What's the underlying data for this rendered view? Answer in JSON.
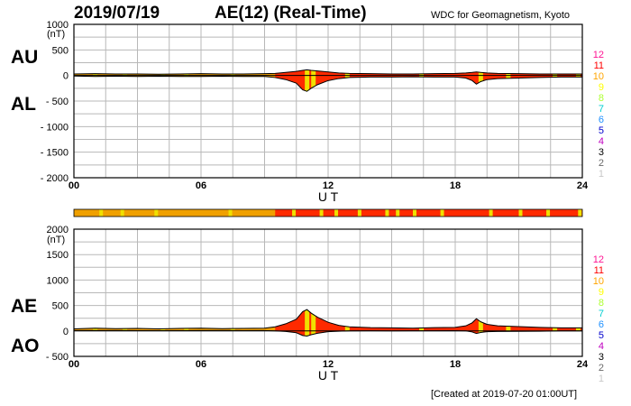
{
  "header": {
    "date": "2019/07/19",
    "title": "AE(12) (Real-Time)",
    "source": "WDC for Geomagnetism, Kyoto"
  },
  "footer": {
    "created": "[Created at 2019-07-20 01:00UT]"
  },
  "colors": {
    "fill_main": "#ff2a00",
    "fill_quiet": "#f0a000",
    "fill_pale": "#f0e000",
    "grid": "#b8b8b8",
    "station_levels": {
      "12": "#ff1493",
      "11": "#ff0000",
      "10": "#ffa500",
      "9": "#ffff00",
      "8": "#adff2f",
      "7": "#00ced1",
      "6": "#1e90ff",
      "5": "#0000cd",
      "4": "#c000c0",
      "3": "#000000",
      "2": "#696969",
      "1": "#c8c8c8"
    }
  },
  "panel_labels": {
    "top_upper": "AU",
    "top_lower": "AL",
    "bottom_upper": "AE",
    "bottom_lower": "AO"
  },
  "chart_data": [
    {
      "type": "area",
      "name": "AU/AL",
      "xlabel": "U T",
      "ylabel": "(nT)",
      "xlim": [
        0,
        24
      ],
      "ylim": [
        -2000,
        1000
      ],
      "x_ticks": [
        "00",
        "06",
        "12",
        "18",
        "24"
      ],
      "y_ticks": [
        "1000",
        "500",
        "0",
        "- 500",
        "- 1000",
        "- 1500",
        "- 2000"
      ],
      "grid": true,
      "legend": [
        "12",
        "11",
        "10",
        "9",
        "8",
        "7",
        "6",
        "5",
        "4",
        "3",
        "2",
        "1"
      ],
      "x": [
        0,
        1,
        2,
        3,
        4,
        5,
        6,
        7,
        8,
        9,
        9.5,
        10,
        10.5,
        10.8,
        11.0,
        11.2,
        11.5,
        12,
        12.5,
        13,
        14,
        15,
        16,
        17,
        18,
        18.5,
        18.8,
        19.0,
        19.2,
        19.5,
        20,
        21,
        22,
        23,
        24
      ],
      "series": [
        {
          "name": "AU",
          "values": [
            30,
            35,
            30,
            30,
            25,
            30,
            35,
            30,
            30,
            35,
            40,
            60,
            80,
            100,
            110,
            100,
            90,
            70,
            50,
            40,
            35,
            30,
            30,
            35,
            40,
            50,
            60,
            70,
            60,
            50,
            40,
            35,
            30,
            30,
            30
          ]
        },
        {
          "name": "AL",
          "values": [
            -10,
            -20,
            -15,
            -20,
            -15,
            -20,
            -20,
            -15,
            -20,
            -20,
            -40,
            -80,
            -150,
            -280,
            -310,
            -250,
            -180,
            -100,
            -60,
            -40,
            -30,
            -30,
            -25,
            -30,
            -30,
            -50,
            -100,
            -170,
            -120,
            -80,
            -60,
            -50,
            -40,
            -30,
            -30
          ]
        }
      ]
    },
    {
      "type": "area",
      "name": "AE/AO",
      "xlabel": "U T",
      "ylabel": "(nT)",
      "xlim": [
        0,
        24
      ],
      "ylim": [
        -500,
        2000
      ],
      "x_ticks": [
        "00",
        "06",
        "12",
        "18",
        "24"
      ],
      "y_ticks": [
        "2000",
        "1500",
        "1000",
        "500",
        "0",
        "- 500"
      ],
      "grid": true,
      "legend": [
        "12",
        "11",
        "10",
        "9",
        "8",
        "7",
        "6",
        "5",
        "4",
        "3",
        "2",
        "1"
      ],
      "x": [
        0,
        1,
        2,
        3,
        4,
        5,
        6,
        7,
        8,
        9,
        9.5,
        10,
        10.5,
        10.8,
        11.0,
        11.2,
        11.5,
        12,
        12.5,
        13,
        14,
        15,
        16,
        17,
        18,
        18.5,
        18.8,
        19.0,
        19.2,
        19.5,
        20,
        21,
        22,
        23,
        24
      ],
      "series": [
        {
          "name": "AE",
          "values": [
            40,
            55,
            45,
            50,
            40,
            50,
            55,
            45,
            50,
            55,
            80,
            140,
            230,
            380,
            420,
            350,
            270,
            170,
            110,
            80,
            65,
            60,
            55,
            65,
            70,
            100,
            160,
            240,
            180,
            130,
            100,
            85,
            70,
            60,
            60
          ]
        },
        {
          "name": "AO",
          "values": [
            10,
            8,
            8,
            5,
            5,
            5,
            8,
            8,
            5,
            8,
            0,
            -10,
            -35,
            -90,
            -100,
            -75,
            -45,
            -15,
            -5,
            0,
            3,
            0,
            3,
            3,
            5,
            0,
            -20,
            -50,
            -30,
            -15,
            -10,
            -8,
            -5,
            0,
            0
          ]
        }
      ]
    }
  ]
}
